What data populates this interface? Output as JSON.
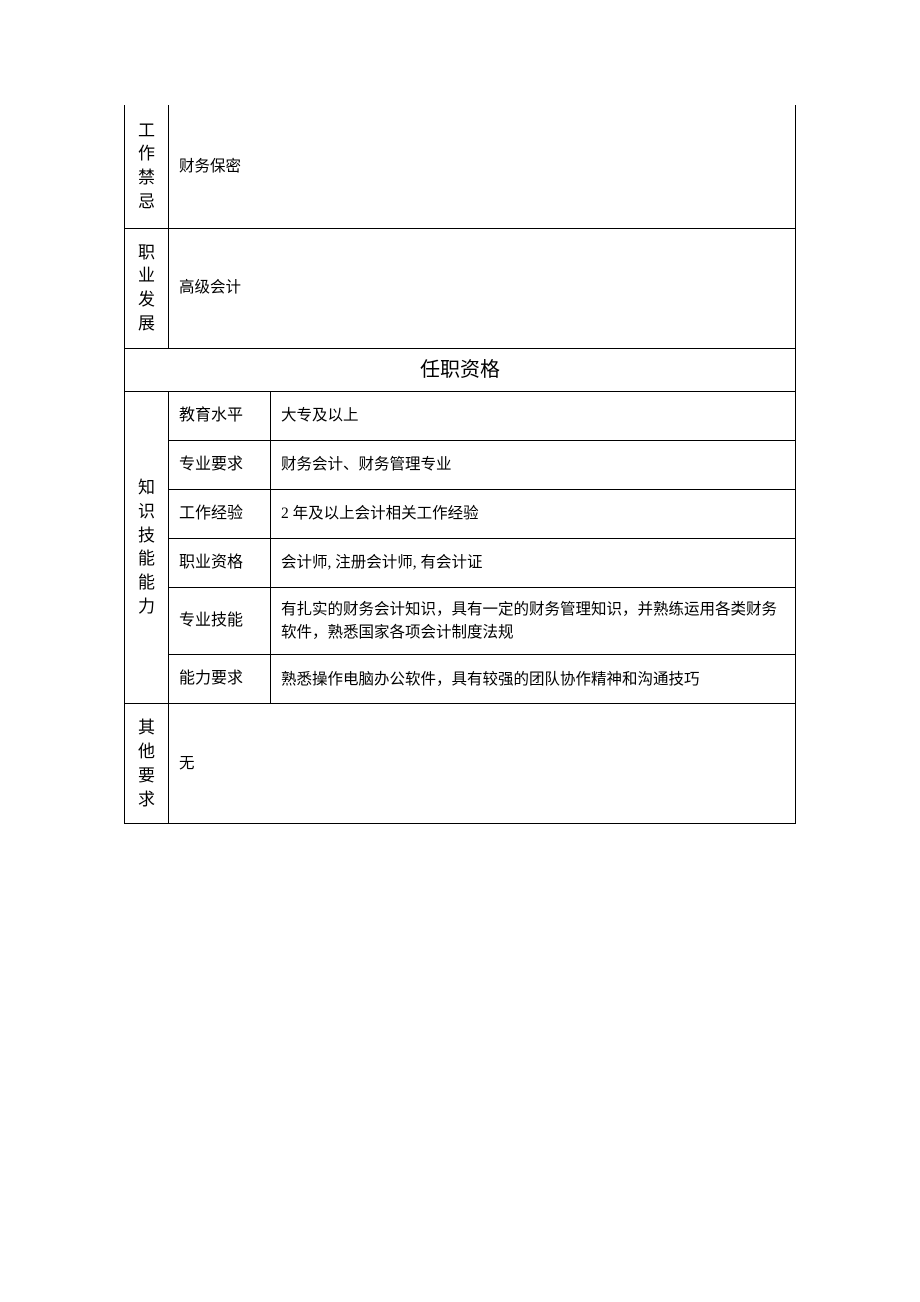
{
  "table": {
    "work_taboo": {
      "label": "工作禁忌",
      "value": "财务保密"
    },
    "career_dev": {
      "label": "职业发展",
      "value": "高级会计"
    },
    "section_header": "任职资格",
    "knowledge_skills": {
      "label": "知识技能能力",
      "rows": [
        {
          "label": "教育水平",
          "value": "大专及以上"
        },
        {
          "label": "专业要求",
          "value": "财务会计、财务管理专业"
        },
        {
          "label": "工作经验",
          "value": "2 年及以上会计相关工作经验"
        },
        {
          "label": "职业资格",
          "value": "会计师, 注册会计师, 有会计证"
        },
        {
          "label": "专业技能",
          "value": "有扎实的财务会计知识，具有一定的财务管理知识，并熟练运用各类财务软件，熟悉国家各项会计制度法规"
        },
        {
          "label": "能力要求",
          "value": "熟悉操作电脑办公软件，具有较强的团队协作精神和沟通技巧"
        }
      ]
    },
    "other_req": {
      "label": "其他要求",
      "value": "无"
    }
  },
  "styling": {
    "border_color": "#000000",
    "background_color": "#ffffff",
    "font_family": "SimSun",
    "label_fontsize": 17,
    "content_fontsize": 15.5,
    "header_fontsize": 20
  }
}
